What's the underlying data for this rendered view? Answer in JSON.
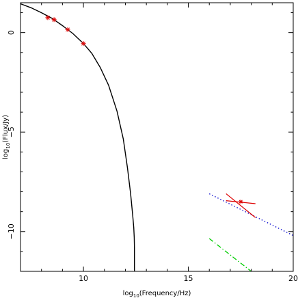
{
  "chart_data": {
    "type": "line",
    "title": "",
    "xlabel": {
      "prefix": "log",
      "sub": "10",
      "suffix": "(Frequency/Hz)"
    },
    "ylabel": {
      "prefix": "log",
      "sub": "10",
      "suffix": "(Flux/Jy)"
    },
    "xlim": [
      7,
      20
    ],
    "ylim": [
      -12,
      1.5
    ],
    "xticks": [
      10,
      15,
      20
    ],
    "yticks": [
      0,
      -5,
      -10
    ],
    "ytick_labels": [
      "0",
      "−5",
      "−10"
    ],
    "grid": false,
    "series": [
      {
        "style": "solid",
        "color": "#000000",
        "x": [
          7.0,
          7.5,
          8.0,
          8.5,
          9.0,
          9.5,
          10.0,
          10.4,
          10.8,
          11.2,
          11.6,
          11.9,
          12.1,
          12.25,
          12.35,
          12.4,
          12.42,
          12.43,
          12.43
        ],
        "y": [
          1.45,
          1.25,
          1.0,
          0.72,
          0.35,
          -0.05,
          -0.55,
          -1.05,
          -1.75,
          -2.65,
          -3.95,
          -5.35,
          -6.8,
          -8.1,
          -9.2,
          -9.8,
          -10.3,
          -10.8,
          -12.0
        ]
      },
      {
        "style": "dotted",
        "color": "#0000cc",
        "x": [
          16.0,
          20.0
        ],
        "y": [
          -8.1,
          -10.2
        ]
      },
      {
        "style": "dashdot",
        "color": "#00cc00",
        "x": [
          16.0,
          18.0
        ],
        "y": [
          -10.35,
          -12.0
        ]
      }
    ],
    "points": {
      "color": "#dd0000",
      "x": [
        8.3,
        8.6,
        9.25,
        10.0
      ],
      "y": [
        0.75,
        0.65,
        0.15,
        -0.55
      ]
    },
    "bowtie": {
      "color": "#dd0000",
      "center": [
        17.5,
        -8.5
      ],
      "arms": [
        {
          "x": [
            16.8,
            18.2
          ],
          "y": [
            -8.1,
            -9.3
          ]
        },
        {
          "x": [
            16.8,
            18.2
          ],
          "y": [
            -8.45,
            -8.6
          ]
        }
      ]
    }
  }
}
